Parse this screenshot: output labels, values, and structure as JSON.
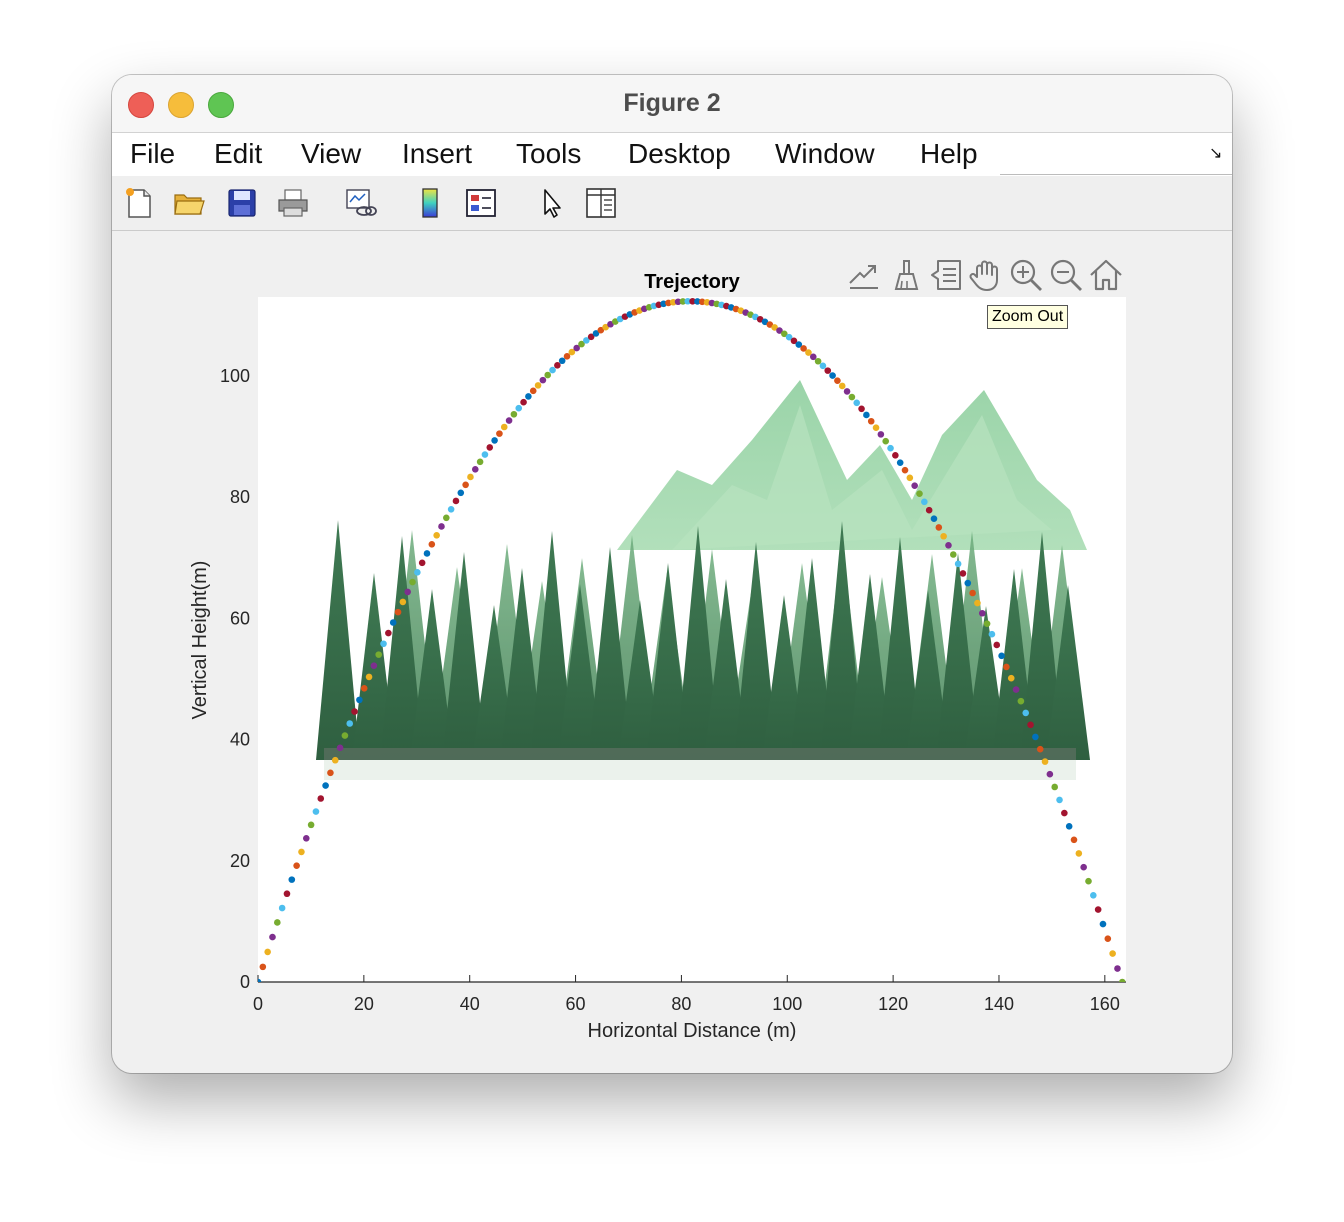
{
  "window": {
    "title": "Figure 2"
  },
  "menu": {
    "items": [
      "File",
      "Edit",
      "View",
      "Insert",
      "Tools",
      "Desktop",
      "Window",
      "Help"
    ]
  },
  "toolbar": {
    "icons": [
      "new-figure-icon",
      "open-file-icon",
      "save-icon",
      "print-icon",
      "link-plot-icon",
      "colorbar-icon",
      "legend-icon",
      "edit-plot-arrow-icon",
      "property-inspector-icon"
    ]
  },
  "axes_toolbar": {
    "icons": [
      "export-icon",
      "brush-icon",
      "data-tips-icon",
      "pan-hand-icon",
      "zoom-in-icon",
      "zoom-out-icon",
      "restore-view-home-icon"
    ],
    "tooltip": "Zoom Out"
  },
  "chart_data": {
    "type": "scatter",
    "title": "Trejectory",
    "xlabel": "Horizontal Distance (m)",
    "ylabel": "Vertical Height(m)",
    "xlim": [
      0,
      164
    ],
    "ylim": [
      0,
      113
    ],
    "xticks": [
      "0",
      "20",
      "40",
      "60",
      "80",
      "100",
      "120",
      "140",
      "160"
    ],
    "yticks": [
      "0",
      "20",
      "40",
      "60",
      "80",
      "100"
    ],
    "marker_colors": [
      "#0072BD",
      "#D95319",
      "#EDB120",
      "#7E2F8E",
      "#77AC30",
      "#4DBEEE",
      "#A2142F"
    ],
    "background_image": "forest-mountains",
    "series": [
      {
        "x_start": 0,
        "x_end": 163.3,
        "peak_x": 81.6,
        "peak_y": 112.3,
        "points": 180
      }
    ]
  }
}
